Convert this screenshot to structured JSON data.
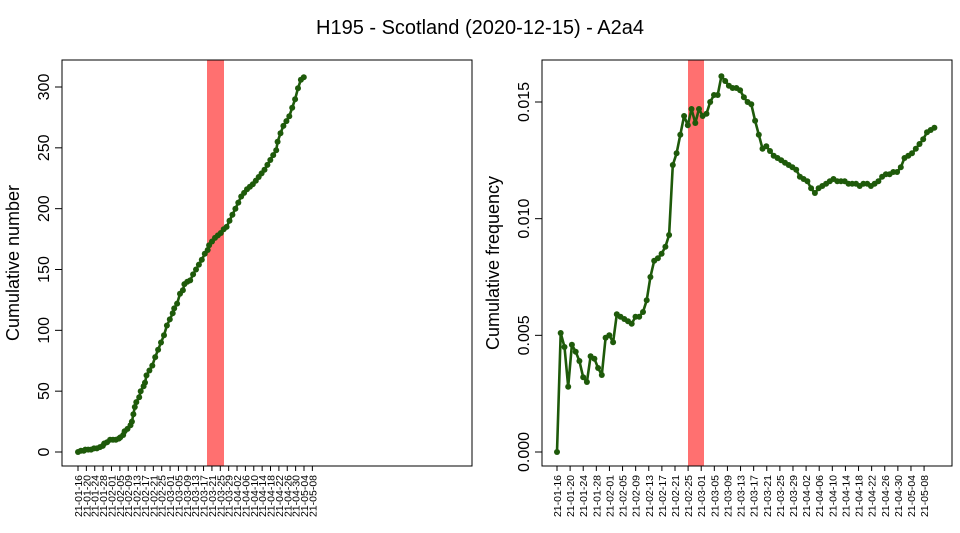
{
  "chart_data": [
    {
      "type": "line",
      "title": "H195 - Scotland (2020-12-15) - A2a4",
      "xlabel": "",
      "ylabel": "Cumulative number",
      "ylim": [
        -8,
        320
      ],
      "yticks": [
        "0",
        "50",
        "100",
        "150",
        "200",
        "250",
        "300"
      ],
      "ytick_values": [
        0,
        50,
        100,
        150,
        200,
        250,
        300
      ],
      "categories": [
        "21-01-16",
        "21-01-20",
        "21-01-24",
        "21-01-28",
        "21-02-01",
        "21-02-05",
        "21-02-09",
        "21-02-13",
        "21-02-17",
        "21-02-21",
        "21-02-25",
        "21-03-01",
        "21-03-05",
        "21-03-09",
        "21-03-13",
        "21-03-17",
        "21-03-21",
        "21-03-25",
        "21-03-29",
        "21-04-02",
        "21-04-06",
        "21-04-10",
        "21-04-14",
        "21-04-18",
        "21-04-22",
        "21-04-26",
        "21-04-30",
        "21-05-04",
        "21-05-08"
      ],
      "highlight_band": {
        "from": "21-02-23",
        "to": "21-02-26",
        "color": "#ff7070"
      },
      "line_color": "#1e5a0a",
      "series": [
        {
          "points": [
            [
              0,
              0
            ],
            [
              2,
              1
            ],
            [
              4,
              1
            ],
            [
              5,
              2
            ],
            [
              7,
              2
            ],
            [
              9,
              2
            ],
            [
              11,
              3
            ],
            [
              13,
              3
            ],
            [
              15,
              4
            ],
            [
              17,
              5
            ],
            [
              18,
              7
            ],
            [
              20,
              8
            ],
            [
              22,
              10
            ],
            [
              24,
              10
            ],
            [
              26,
              10
            ],
            [
              28,
              11
            ],
            [
              29,
              12
            ],
            [
              31,
              14
            ],
            [
              32,
              17
            ],
            [
              34,
              19
            ],
            [
              36,
              22
            ],
            [
              37,
              25
            ],
            [
              38,
              31
            ],
            [
              39,
              37
            ],
            [
              40,
              41
            ],
            [
              42,
              45
            ],
            [
              43,
              50
            ],
            [
              45,
              54
            ],
            [
              46,
              57
            ],
            [
              47,
              63
            ],
            [
              49,
              67
            ],
            [
              51,
              71
            ],
            [
              53,
              78
            ],
            [
              55,
              84
            ],
            [
              57,
              90
            ],
            [
              59,
              96
            ],
            [
              61,
              104
            ],
            [
              63,
              109
            ],
            [
              65,
              114
            ],
            [
              66,
              118
            ],
            [
              68,
              122
            ],
            [
              70,
              130
            ],
            [
              72,
              133
            ],
            [
              73,
              138
            ],
            [
              75,
              140
            ],
            [
              77,
              141
            ],
            [
              79,
              146
            ],
            [
              81,
              150
            ],
            [
              83,
              154
            ],
            [
              85,
              158
            ],
            [
              87,
              163
            ],
            [
              89,
              166
            ],
            [
              90,
              170
            ],
            [
              92,
              173
            ],
            [
              94,
              176
            ],
            [
              96,
              178
            ],
            [
              98,
              180
            ],
            [
              100,
              183
            ],
            [
              102,
              185
            ],
            [
              104,
              190
            ],
            [
              106,
              195
            ],
            [
              108,
              200
            ],
            [
              110,
              205
            ],
            [
              112,
              210
            ],
            [
              114,
              213
            ],
            [
              116,
              216
            ],
            [
              118,
              218
            ],
            [
              120,
              220
            ],
            [
              122,
              223
            ],
            [
              124,
              226
            ],
            [
              126,
              229
            ],
            [
              128,
              232
            ],
            [
              130,
              236
            ],
            [
              132,
              240
            ],
            [
              134,
              244
            ],
            [
              136,
              248
            ],
            [
              137,
              255
            ],
            [
              139,
              262
            ],
            [
              141,
              268
            ],
            [
              143,
              272
            ],
            [
              145,
              276
            ],
            [
              147,
              283
            ],
            [
              149,
              290
            ],
            [
              151,
              299
            ],
            [
              153,
              306
            ],
            [
              155,
              308
            ]
          ]
        }
      ]
    },
    {
      "type": "line",
      "title": "",
      "xlabel": "",
      "ylabel": "Cumulative frequency",
      "ylim": [
        -0.0005,
        0.0165
      ],
      "yticks": [
        "0.000",
        "0.005",
        "0.010",
        "0.015"
      ],
      "ytick_values": [
        0.0,
        0.005,
        0.01,
        0.015
      ],
      "categories": [
        "21-01-16",
        "21-01-20",
        "21-01-24",
        "21-01-28",
        "21-02-01",
        "21-02-05",
        "21-02-09",
        "21-02-13",
        "21-02-17",
        "21-02-21",
        "21-02-25",
        "21-03-01",
        "21-03-05",
        "21-03-09",
        "21-03-13",
        "21-03-17",
        "21-03-21",
        "21-03-25",
        "21-03-29",
        "21-04-02",
        "21-04-06",
        "21-04-10",
        "21-04-14",
        "21-04-18",
        "21-04-22",
        "21-04-26",
        "21-04-30",
        "21-05-04",
        "21-05-08"
      ],
      "highlight_band": {
        "from": "21-02-23",
        "to": "21-02-26",
        "color": "#ff7070"
      },
      "line_color": "#1e5a0a",
      "series": [
        {
          "points": [
            [
              0,
              0.0
            ],
            [
              1,
              0.0051
            ],
            [
              2,
              0.0045
            ],
            [
              3,
              0.0028
            ],
            [
              4,
              0.0046
            ],
            [
              5,
              0.0043
            ],
            [
              6,
              0.0039
            ],
            [
              7,
              0.0032
            ],
            [
              8,
              0.003
            ],
            [
              9,
              0.0041
            ],
            [
              10,
              0.004
            ],
            [
              11,
              0.0036
            ],
            [
              12,
              0.0033
            ],
            [
              13,
              0.0049
            ],
            [
              14,
              0.005
            ],
            [
              15,
              0.0047
            ],
            [
              16,
              0.0059
            ],
            [
              17,
              0.0058
            ],
            [
              18,
              0.0057
            ],
            [
              19,
              0.0056
            ],
            [
              20,
              0.0055
            ],
            [
              21,
              0.0058
            ],
            [
              22,
              0.0058
            ],
            [
              23,
              0.006
            ],
            [
              24,
              0.0065
            ],
            [
              25,
              0.0075
            ],
            [
              26,
              0.0082
            ],
            [
              27,
              0.0083
            ],
            [
              28,
              0.0085
            ],
            [
              29,
              0.0088
            ],
            [
              30,
              0.0093
            ],
            [
              31,
              0.0123
            ],
            [
              32,
              0.0128
            ],
            [
              33,
              0.0136
            ],
            [
              34,
              0.0144
            ],
            [
              35,
              0.014
            ],
            [
              36,
              0.0147
            ],
            [
              37,
              0.0141
            ],
            [
              38,
              0.0147
            ],
            [
              39,
              0.0144
            ],
            [
              40,
              0.0145
            ],
            [
              41,
              0.015
            ],
            [
              42,
              0.0153
            ],
            [
              43,
              0.0153
            ],
            [
              44,
              0.0161
            ],
            [
              45,
              0.0159
            ],
            [
              46,
              0.0157
            ],
            [
              47,
              0.0156
            ],
            [
              48,
              0.0156
            ],
            [
              49,
              0.0155
            ],
            [
              50,
              0.0152
            ],
            [
              51,
              0.015
            ],
            [
              52,
              0.0149
            ],
            [
              53,
              0.0142
            ],
            [
              54,
              0.0136
            ],
            [
              55,
              0.013
            ],
            [
              56,
              0.0131
            ],
            [
              57,
              0.0129
            ],
            [
              58,
              0.0127
            ],
            [
              59,
              0.0126
            ],
            [
              60,
              0.0125
            ],
            [
              61,
              0.0124
            ],
            [
              62,
              0.0123
            ],
            [
              63,
              0.0122
            ],
            [
              64,
              0.0121
            ],
            [
              65,
              0.0118
            ],
            [
              66,
              0.0117
            ],
            [
              67,
              0.0116
            ],
            [
              68,
              0.0113
            ],
            [
              69,
              0.0111
            ],
            [
              70,
              0.0113
            ],
            [
              71,
              0.0114
            ],
            [
              72,
              0.0115
            ],
            [
              73,
              0.0116
            ],
            [
              74,
              0.0117
            ],
            [
              75,
              0.0116
            ],
            [
              76,
              0.0116
            ],
            [
              77,
              0.0116
            ],
            [
              78,
              0.0115
            ],
            [
              79,
              0.0115
            ],
            [
              80,
              0.0115
            ],
            [
              81,
              0.0114
            ],
            [
              82,
              0.0115
            ],
            [
              83,
              0.0115
            ],
            [
              84,
              0.0114
            ],
            [
              85,
              0.0115
            ],
            [
              86,
              0.0116
            ],
            [
              87,
              0.0118
            ],
            [
              88,
              0.0119
            ],
            [
              89,
              0.0119
            ],
            [
              90,
              0.012
            ],
            [
              91,
              0.012
            ],
            [
              92,
              0.0122
            ],
            [
              93,
              0.0126
            ],
            [
              94,
              0.0127
            ],
            [
              95,
              0.0128
            ],
            [
              96,
              0.013
            ],
            [
              97,
              0.0132
            ],
            [
              98,
              0.0134
            ],
            [
              99,
              0.0137
            ],
            [
              100,
              0.0138
            ],
            [
              101,
              0.0139
            ]
          ]
        }
      ]
    }
  ]
}
